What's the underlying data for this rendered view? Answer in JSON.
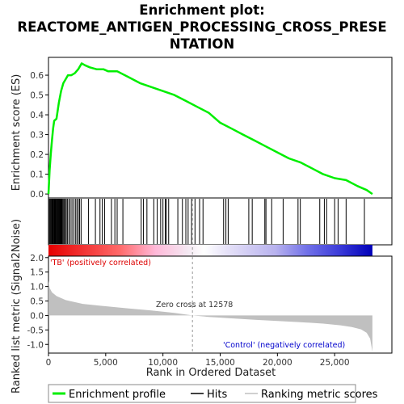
{
  "chart_data": {
    "type": "line",
    "title_line1": "Enrichment plot:",
    "title_line2": "REACTOME_ANTIGEN_PROCESSING_CROSS_PRESE",
    "title_line3": "NTATION",
    "top_panel": {
      "ylabel": "Enrichment score (ES)",
      "yticks": [
        "0.0",
        "0.1",
        "0.2",
        "0.3",
        "0.4",
        "0.5",
        "0.6"
      ],
      "ylim": [
        -0.02,
        0.69
      ],
      "line_color": "#00ee00",
      "es_curve": [
        [
          0,
          0.0
        ],
        [
          100,
          0.12
        ],
        [
          200,
          0.2
        ],
        [
          300,
          0.27
        ],
        [
          400,
          0.33
        ],
        [
          500,
          0.37
        ],
        [
          700,
          0.38
        ],
        [
          900,
          0.46
        ],
        [
          1100,
          0.52
        ],
        [
          1300,
          0.56
        ],
        [
          1500,
          0.58
        ],
        [
          1700,
          0.6
        ],
        [
          2000,
          0.6
        ],
        [
          2300,
          0.61
        ],
        [
          2600,
          0.63
        ],
        [
          2900,
          0.66
        ],
        [
          3200,
          0.65
        ],
        [
          3600,
          0.64
        ],
        [
          4200,
          0.63
        ],
        [
          4800,
          0.63
        ],
        [
          5200,
          0.62
        ],
        [
          6000,
          0.62
        ],
        [
          7000,
          0.59
        ],
        [
          8000,
          0.56
        ],
        [
          9000,
          0.54
        ],
        [
          10000,
          0.52
        ],
        [
          11000,
          0.5
        ],
        [
          12000,
          0.47
        ],
        [
          13000,
          0.44
        ],
        [
          14000,
          0.41
        ],
        [
          15000,
          0.36
        ],
        [
          16000,
          0.33
        ],
        [
          17000,
          0.3
        ],
        [
          18000,
          0.27
        ],
        [
          19000,
          0.24
        ],
        [
          20000,
          0.21
        ],
        [
          21000,
          0.18
        ],
        [
          22000,
          0.16
        ],
        [
          23000,
          0.13
        ],
        [
          24000,
          0.1
        ],
        [
          25000,
          0.08
        ],
        [
          26000,
          0.07
        ],
        [
          27000,
          0.04
        ],
        [
          27800,
          0.02
        ],
        [
          28300,
          0.0
        ]
      ]
    },
    "hits_panel": {
      "legend_label": "Hits",
      "hit_positions": [
        80,
        150,
        220,
        290,
        350,
        410,
        470,
        530,
        600,
        660,
        720,
        780,
        850,
        920,
        990,
        1060,
        1130,
        1200,
        1280,
        1360,
        1450,
        1550,
        1650,
        1780,
        1900,
        2050,
        2200,
        2350,
        2480,
        2600,
        2720,
        2850,
        3500,
        4100,
        4500,
        4700,
        4900,
        5500,
        5800,
        6000,
        6500,
        8100,
        8300,
        8600,
        9200,
        9500,
        9800,
        10000,
        10200,
        10300,
        10500,
        11300,
        11700,
        12000,
        12200,
        12500,
        12800,
        13200,
        13500,
        15300,
        15500,
        15700,
        17500,
        17800,
        18900,
        19000,
        19500,
        20500,
        21800,
        22000,
        23700,
        24100,
        24300,
        25000,
        25300,
        26000,
        27600
      ]
    },
    "bottom_panel": {
      "ylabel": "Ranked list metric (Signal2Noise)",
      "yticks": [
        "2.0",
        "1.5",
        "1.0",
        "0.5",
        "0.0",
        "-0.5",
        "-1.0"
      ],
      "ylim": [
        -1.3,
        2.05
      ],
      "fill_color": "#c0c0c0",
      "metric_curve": [
        [
          0,
          1.2
        ],
        [
          100,
          0.95
        ],
        [
          300,
          0.8
        ],
        [
          700,
          0.67
        ],
        [
          1500,
          0.53
        ],
        [
          3000,
          0.4
        ],
        [
          5000,
          0.32
        ],
        [
          7000,
          0.24
        ],
        [
          9000,
          0.17
        ],
        [
          11000,
          0.09
        ],
        [
          12578,
          0.0
        ],
        [
          14000,
          -0.05
        ],
        [
          16000,
          -0.1
        ],
        [
          18000,
          -0.15
        ],
        [
          20000,
          -0.19
        ],
        [
          22000,
          -0.23
        ],
        [
          24000,
          -0.28
        ],
        [
          25500,
          -0.34
        ],
        [
          26500,
          -0.4
        ],
        [
          27300,
          -0.48
        ],
        [
          27800,
          -0.6
        ],
        [
          28100,
          -0.8
        ],
        [
          28300,
          -1.25
        ]
      ],
      "zero_cross_label": "Zero cross at 12578",
      "zero_cross": 12578,
      "pos_label": "'TB' (positively correlated)",
      "neg_label": "'Control' (negatively correlated)",
      "pos_color": "#dd0000",
      "neg_color": "#0000cc"
    },
    "x_axis": {
      "xlabel": "Rank in Ordered Dataset",
      "xticks": [
        "0",
        "5,000",
        "10,000",
        "15,000",
        "20,000",
        "25,000"
      ],
      "xtick_values": [
        0,
        5000,
        10000,
        15000,
        20000,
        25000
      ],
      "xlim": [
        0,
        30000
      ],
      "n_genes": 28300
    },
    "legend": {
      "items": [
        "Enrichment profile",
        "Hits",
        "Ranking metric scores"
      ]
    }
  }
}
